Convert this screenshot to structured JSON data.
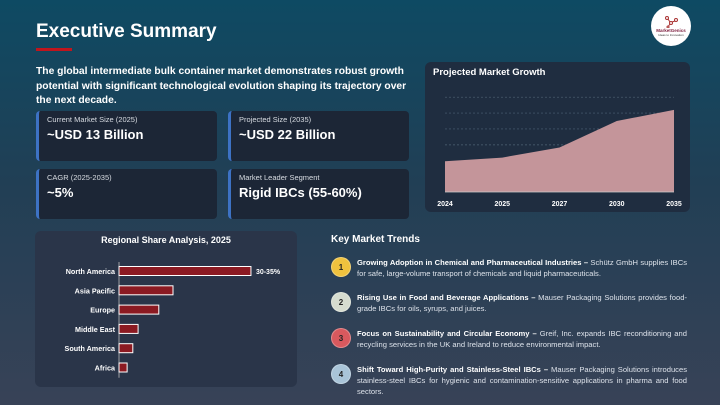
{
  "header": {
    "title": "Executive Summary",
    "intro": "The global intermediate bulk container market demonstrates robust growth potential with significant technological evolution shaping its trajectory over the next decade.",
    "logo_text": "MarketGenics",
    "logo_tagline": "Ideas to Innovation"
  },
  "cards": [
    {
      "label": "Current Market Size (2025)",
      "value": "~USD 13 Billion"
    },
    {
      "label": "Projected Size (2035)",
      "value": "~USD 22 Billion"
    },
    {
      "label": "CAGR (2025-2035)",
      "value": "~5%"
    },
    {
      "label": "Market Leader Segment",
      "value": "Rigid IBCs (55-60%)"
    }
  ],
  "colors": {
    "accent_red": "#c0151d",
    "card_border": "#3d72c4",
    "area_fill": "#c4959a",
    "bar_fill": "#8b1a22"
  },
  "chart_data": [
    {
      "type": "area",
      "title": "Projected Market Growth",
      "categories": [
        "2024",
        "2025",
        "2027",
        "2030",
        "2035"
      ],
      "values": [
        12.3,
        13,
        14.9,
        19.9,
        22
      ],
      "ylim": [
        6.5,
        25
      ],
      "grid": true,
      "legend": "none"
    },
    {
      "type": "bar",
      "orientation": "horizontal",
      "title": "Regional Share Analysis, 2025",
      "categories": [
        "North America",
        "Asia Pacific",
        "Europe",
        "Middle East",
        "South America",
        "Africa"
      ],
      "values": [
        32.5,
        13.3,
        9.8,
        4.7,
        3.4,
        2.0
      ],
      "data_labels": [
        "30-35%",
        "",
        "",
        "",
        "",
        ""
      ],
      "grid": false,
      "legend": "none"
    }
  ],
  "trends": {
    "title": "Key Market Trends",
    "items": [
      {
        "num": "1",
        "color": "#f0c23e",
        "head": "Growing Adoption in Chemical and Pharmaceutical Industries –",
        "body": " Schütz GmbH supplies IBCs for safe, large-volume transport of chemicals and liquid pharmaceuticals."
      },
      {
        "num": "2",
        "color": "#d6dccf",
        "head": "Rising Use in Food and Beverage Applications –",
        "body": " Mauser Packaging Solutions provides food-grade IBCs for oils, syrups, and juices."
      },
      {
        "num": "3",
        "color": "#d9595e",
        "head": "Focus on Sustainability and Circular Economy –",
        "body": " Greif, Inc. expands IBC reconditioning and recycling services in the UK and Ireland to reduce environmental impact."
      },
      {
        "num": "4",
        "color": "#a9c4d8",
        "head": "Shift Toward High-Purity and Stainless-Steel IBCs –",
        "body": " Mauser Packaging Solutions introduces stainless-steel IBCs for hygienic and contamination-sensitive applications in pharma and food sectors."
      }
    ]
  }
}
